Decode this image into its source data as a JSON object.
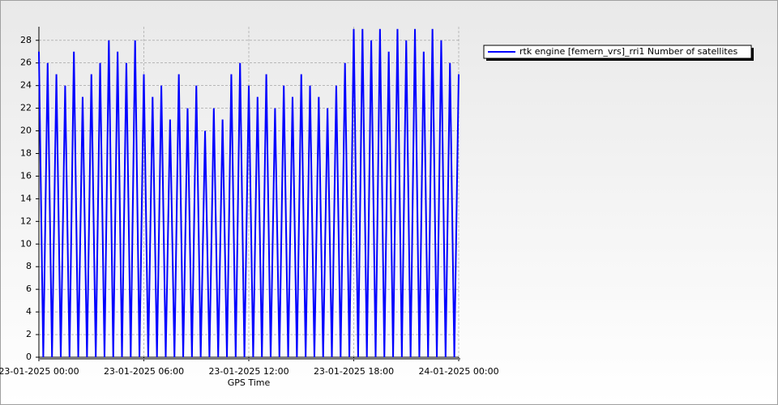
{
  "chart_data": {
    "type": "line",
    "x_label": "GPS Time",
    "x": [
      "23-01-2025 00:00",
      "23-01-2025 00:15",
      "23-01-2025 00:30",
      "23-01-2025 00:45",
      "23-01-2025 01:00",
      "23-01-2025 01:15",
      "23-01-2025 01:30",
      "23-01-2025 01:45",
      "23-01-2025 02:00",
      "23-01-2025 02:15",
      "23-01-2025 02:30",
      "23-01-2025 02:45",
      "23-01-2025 03:00",
      "23-01-2025 03:15",
      "23-01-2025 03:30",
      "23-01-2025 03:45",
      "23-01-2025 04:00",
      "23-01-2025 04:15",
      "23-01-2025 04:30",
      "23-01-2025 04:45",
      "23-01-2025 05:00",
      "23-01-2025 05:15",
      "23-01-2025 05:30",
      "23-01-2025 05:45",
      "23-01-2025 06:00",
      "23-01-2025 06:15",
      "23-01-2025 06:30",
      "23-01-2025 06:45",
      "23-01-2025 07:00",
      "23-01-2025 07:15",
      "23-01-2025 07:30",
      "23-01-2025 07:45",
      "23-01-2025 08:00",
      "23-01-2025 08:15",
      "23-01-2025 08:30",
      "23-01-2025 08:45",
      "23-01-2025 09:00",
      "23-01-2025 09:15",
      "23-01-2025 09:30",
      "23-01-2025 09:45",
      "23-01-2025 10:00",
      "23-01-2025 10:15",
      "23-01-2025 10:30",
      "23-01-2025 10:45",
      "23-01-2025 11:00",
      "23-01-2025 11:15",
      "23-01-2025 11:30",
      "23-01-2025 11:45",
      "23-01-2025 12:00",
      "23-01-2025 12:15",
      "23-01-2025 12:30",
      "23-01-2025 12:45",
      "23-01-2025 13:00",
      "23-01-2025 13:15",
      "23-01-2025 13:30",
      "23-01-2025 13:45",
      "23-01-2025 14:00",
      "23-01-2025 14:15",
      "23-01-2025 14:30",
      "23-01-2025 14:45",
      "23-01-2025 15:00",
      "23-01-2025 15:15",
      "23-01-2025 15:30",
      "23-01-2025 15:45",
      "23-01-2025 16:00",
      "23-01-2025 16:15",
      "23-01-2025 16:30",
      "23-01-2025 16:45",
      "23-01-2025 17:00",
      "23-01-2025 17:15",
      "23-01-2025 17:30",
      "23-01-2025 17:45",
      "23-01-2025 18:00",
      "23-01-2025 18:15",
      "23-01-2025 18:30",
      "23-01-2025 18:45",
      "23-01-2025 19:00",
      "23-01-2025 19:15",
      "23-01-2025 19:30",
      "23-01-2025 19:45",
      "23-01-2025 20:00",
      "23-01-2025 20:15",
      "23-01-2025 20:30",
      "23-01-2025 20:45",
      "23-01-2025 21:00",
      "23-01-2025 21:15",
      "23-01-2025 21:30",
      "23-01-2025 21:45",
      "23-01-2025 22:00",
      "23-01-2025 22:15",
      "23-01-2025 22:30",
      "23-01-2025 22:45",
      "23-01-2025 23:00",
      "23-01-2025 23:15",
      "23-01-2025 23:30",
      "23-01-2025 23:45",
      "24-01-2025 00:00"
    ],
    "series": [
      {
        "name": "rtk engine [femern_vrs]_rri1 Number of satellites",
        "color": "#0000ff",
        "values": [
          27,
          0,
          26,
          0,
          25,
          0,
          24,
          0,
          27,
          0,
          23,
          0,
          25,
          0,
          26,
          0,
          28,
          0,
          27,
          0,
          26,
          0,
          28,
          0,
          25,
          0,
          23,
          0,
          24,
          0,
          21,
          0,
          25,
          0,
          22,
          0,
          24,
          0,
          20,
          0,
          22,
          0,
          21,
          0,
          25,
          0,
          26,
          0,
          24,
          0,
          23,
          0,
          25,
          0,
          22,
          0,
          24,
          0,
          23,
          0,
          25,
          0,
          24,
          0,
          23,
          0,
          22,
          0,
          24,
          0,
          26,
          0,
          29,
          0,
          29,
          0,
          28,
          0,
          29,
          0,
          27,
          0,
          29,
          0,
          28,
          0,
          29,
          0,
          27,
          0,
          29,
          0,
          28,
          0,
          26,
          0,
          25
        ]
      }
    ],
    "xlim": [
      "23-01-2025 00:00",
      "24-01-2025 00:00"
    ],
    "xticks": [
      "23-01-2025 00:00",
      "23-01-2025 06:00",
      "23-01-2025 12:00",
      "23-01-2025 18:00",
      "24-01-2025 00:00"
    ],
    "ylim": [
      0,
      29.2
    ],
    "yticks": [
      0,
      2,
      4,
      6,
      8,
      10,
      12,
      14,
      16,
      18,
      20,
      22,
      24,
      26,
      28
    ],
    "grid": true,
    "legend": "right"
  }
}
